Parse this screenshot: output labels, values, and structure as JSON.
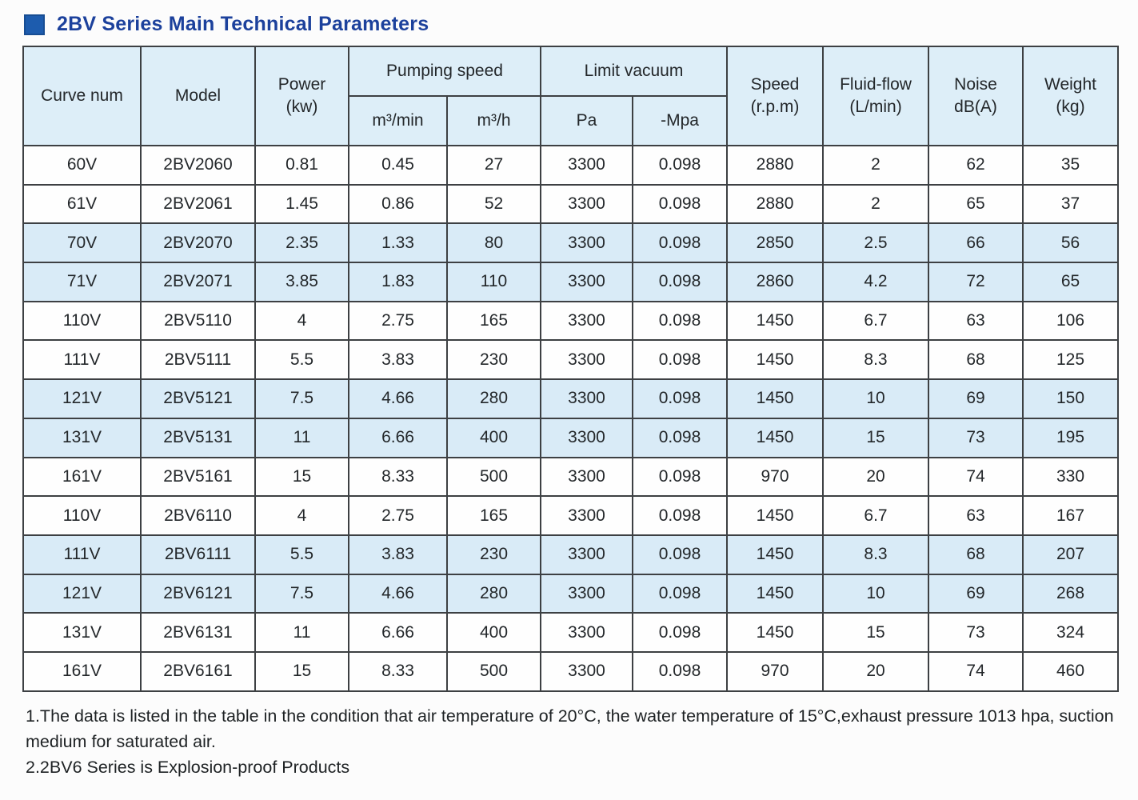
{
  "title": {
    "text": "2BV Series Main Technical Parameters"
  },
  "colors": {
    "accent_square": "#1d5cae",
    "title_text": "#1c419c",
    "header_bg": "#ddeef8",
    "stripe_bg": "#d9ebf7",
    "border": "#3d4043"
  },
  "table": {
    "headers": {
      "curve_num": "Curve num",
      "model": "Model",
      "power_l1": "Power",
      "power_l2": "(kw)",
      "pumping_speed": "Pumping speed",
      "pumping_sub_min": "m³/min",
      "pumping_sub_h": "m³/h",
      "limit_vacuum": "Limit vacuum",
      "limit_sub_pa": "Pa",
      "limit_sub_mpa": "-Mpa",
      "speed_l1": "Speed",
      "speed_l2": "(r.p.m)",
      "fluid_l1": "Fluid-flow",
      "fluid_l2": "(L/min)",
      "noise_l1": "Noise",
      "noise_l2": "dB(A)",
      "weight_l1": "Weight",
      "weight_l2": "(kg)"
    },
    "rows": [
      [
        "60V",
        "2BV2060",
        "0.81",
        "0.45",
        "27",
        "3300",
        "0.098",
        "2880",
        "2",
        "62",
        "35"
      ],
      [
        "61V",
        "2BV2061",
        "1.45",
        "0.86",
        "52",
        "3300",
        "0.098",
        "2880",
        "2",
        "65",
        "37"
      ],
      [
        "70V",
        "2BV2070",
        "2.35",
        "1.33",
        "80",
        "3300",
        "0.098",
        "2850",
        "2.5",
        "66",
        "56"
      ],
      [
        "71V",
        "2BV2071",
        "3.85",
        "1.83",
        "110",
        "3300",
        "0.098",
        "2860",
        "4.2",
        "72",
        "65"
      ],
      [
        "110V",
        "2BV5110",
        "4",
        "2.75",
        "165",
        "3300",
        "0.098",
        "1450",
        "6.7",
        "63",
        "106"
      ],
      [
        "111V",
        "2BV5111",
        "5.5",
        "3.83",
        "230",
        "3300",
        "0.098",
        "1450",
        "8.3",
        "68",
        "125"
      ],
      [
        "121V",
        "2BV5121",
        "7.5",
        "4.66",
        "280",
        "3300",
        "0.098",
        "1450",
        "10",
        "69",
        "150"
      ],
      [
        "131V",
        "2BV5131",
        "11",
        "6.66",
        "400",
        "3300",
        "0.098",
        "1450",
        "15",
        "73",
        "195"
      ],
      [
        "161V",
        "2BV5161",
        "15",
        "8.33",
        "500",
        "3300",
        "0.098",
        "970",
        "20",
        "74",
        "330"
      ],
      [
        "110V",
        "2BV6110",
        "4",
        "2.75",
        "165",
        "3300",
        "0.098",
        "1450",
        "6.7",
        "63",
        "167"
      ],
      [
        "111V",
        "2BV6111",
        "5.5",
        "3.83",
        "230",
        "3300",
        "0.098",
        "1450",
        "8.3",
        "68",
        "207"
      ],
      [
        "121V",
        "2BV6121",
        "7.5",
        "4.66",
        "280",
        "3300",
        "0.098",
        "1450",
        "10",
        "69",
        "268"
      ],
      [
        "131V",
        "2BV6131",
        "11",
        "6.66",
        "400",
        "3300",
        "0.098",
        "1450",
        "15",
        "73",
        "324"
      ],
      [
        "161V",
        "2BV6161",
        "15",
        "8.33",
        "500",
        "3300",
        "0.098",
        "970",
        "20",
        "74",
        "460"
      ]
    ],
    "striped_row_indices": [
      2,
      3,
      6,
      7,
      10,
      11
    ]
  },
  "notes": [
    "1.The data is listed in the table in the condition that air temperature of 20°C, the water temperature of 15°C,exhaust pressure 1013 hpa, suction medium for saturated air.",
    "2.2BV6 Series is Explosion-proof Products"
  ]
}
